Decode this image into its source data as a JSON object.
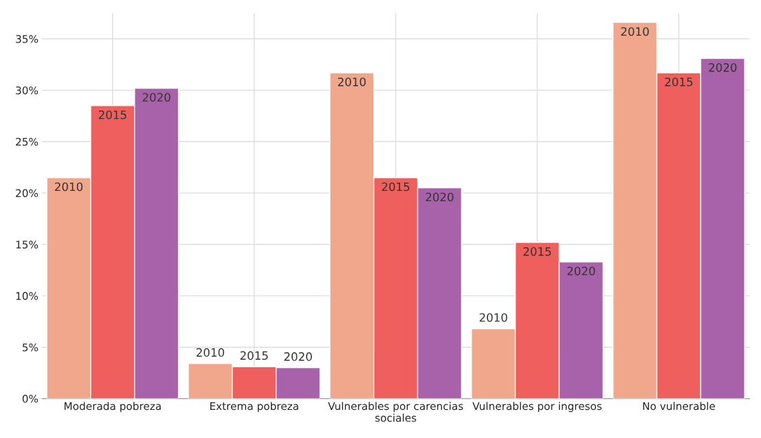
{
  "chart_data": {
    "type": "bar",
    "categories": [
      "Moderada pobreza",
      "Extrema pobreza",
      "Vulnerables por carencias\nsociales",
      "Vulnerables por ingresos",
      "No vulnerable"
    ],
    "series": [
      {
        "name": "2010",
        "color": "#f0a78b",
        "values": [
          21.5,
          3.4,
          31.7,
          6.8,
          36.6
        ]
      },
      {
        "name": "2015",
        "color": "#ef5f5e",
        "values": [
          28.5,
          3.1,
          21.5,
          15.2,
          31.7
        ]
      },
      {
        "name": "2020",
        "color": "#a862aa",
        "values": [
          30.2,
          3.0,
          20.5,
          13.3,
          33.1
        ]
      }
    ],
    "ylim": [
      0,
      37.5
    ],
    "yticks": [
      {
        "value": 0,
        "label": "0%"
      },
      {
        "value": 5,
        "label": "5%"
      },
      {
        "value": 10,
        "label": "10%"
      },
      {
        "value": 15,
        "label": "15%"
      },
      {
        "value": 20,
        "label": "20%"
      },
      {
        "value": 25,
        "label": "25%"
      },
      {
        "value": 30,
        "label": "30%"
      },
      {
        "value": 35,
        "label": "35%"
      }
    ],
    "grid": true,
    "legend": false
  }
}
